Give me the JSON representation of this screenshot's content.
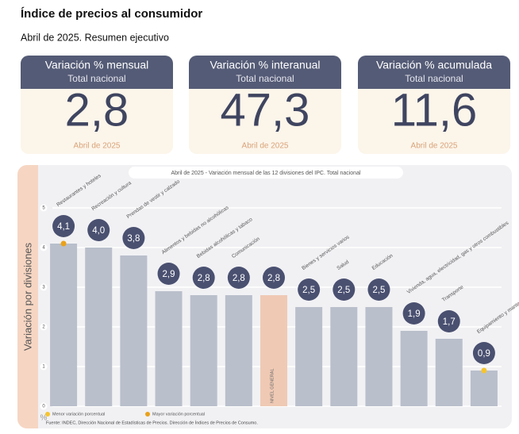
{
  "header": {
    "title": "Índice de precios al consumidor",
    "subtitle": "Abril de 2025. Resumen ejecutivo"
  },
  "cards": [
    {
      "title": "Variación % mensual",
      "subtitle": "Total nacional",
      "value": "2,8",
      "date": "Abril de 2025"
    },
    {
      "title": "Variación % interanual",
      "subtitle": "Total nacional",
      "value": "47,3",
      "date": "Abril de 2025"
    },
    {
      "title": "Variación % acumulada",
      "subtitle": "Total nacional",
      "value": "11,6",
      "date": "Abril de 2025"
    }
  ],
  "chart_data": {
    "type": "bar",
    "title": "Abril de 2025 - Variación mensual de las 12 divisiones del IPC. Total nacional",
    "y_label": "Variación por divisiones",
    "y_unit": "%",
    "categories": [
      "Restaurantes y hoteles",
      "Recreación y cultura",
      "Prendas de vestir y calzado",
      "Alimentos y bebidas no alcohólicas",
      "Bebidas alcohólicas y tabaco",
      "Comunicación",
      "NIVEL GENERAL",
      "Bienes y servicios varios",
      "Salud",
      "Educación",
      "Vivienda, agua, electricidad, gas y otros combustibles",
      "Transporte",
      "Equipamiento y mantenimiento del hogar"
    ],
    "values": [
      4.1,
      4.0,
      3.8,
      2.9,
      2.8,
      2.8,
      2.8,
      2.5,
      2.5,
      2.5,
      1.9,
      1.7,
      0.9
    ],
    "value_labels": [
      "4,1",
      "4,0",
      "3,8",
      "2,9",
      "2,8",
      "2,8",
      "2,8",
      "2,5",
      "2,5",
      "2,5",
      "1,9",
      "1,7",
      "0,9"
    ],
    "colors": [
      "#b9bfcb",
      "#b9bfcb",
      "#b9bfcb",
      "#b9bfcb",
      "#b9bfcb",
      "#b9bfcb",
      "#efc9b4",
      "#b9bfcb",
      "#b9bfcb",
      "#b9bfcb",
      "#b9bfcb",
      "#b9bfcb",
      "#b9bfcb"
    ],
    "ylim": [
      0,
      5
    ],
    "yticks": [
      0,
      1,
      2,
      3,
      4,
      5
    ],
    "grid": true,
    "legend": [
      {
        "name": "Menor variación porcentual",
        "color": "#f5c431"
      },
      {
        "name": "Mayor variación porcentual",
        "color": "#e9a21a"
      }
    ],
    "source": "Fuente: INDEC, Dirección Nacional de Estadísticas de Precios. Dirección de Índices de Precios de Consumo."
  }
}
